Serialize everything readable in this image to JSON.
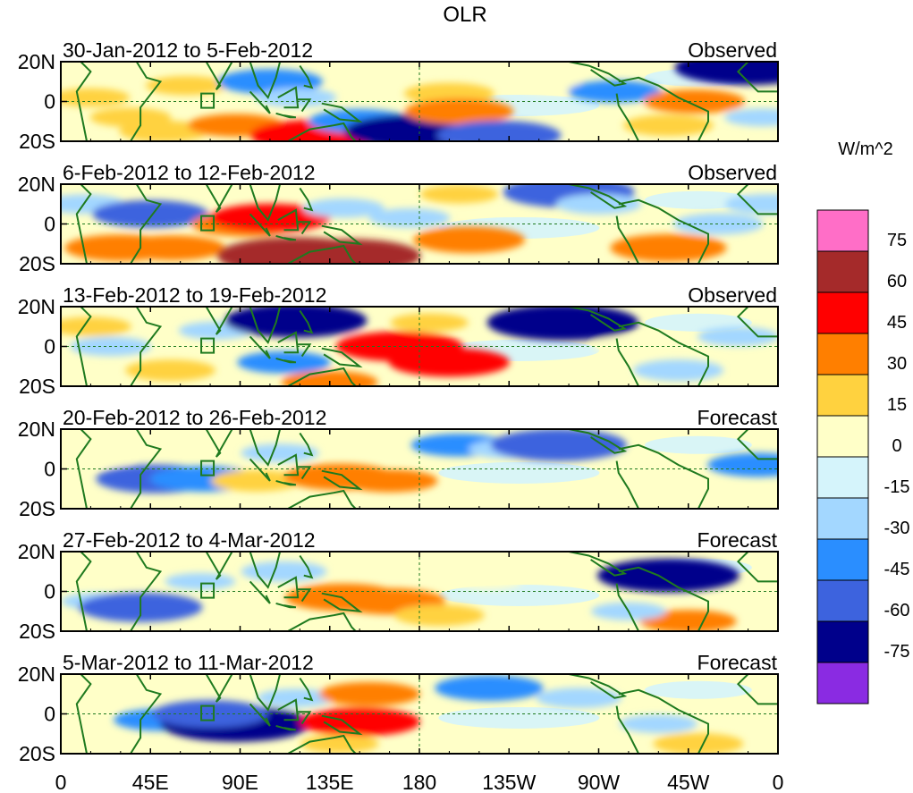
{
  "chart_data": {
    "type": "heatmap",
    "title": "OLR",
    "colorbar": {
      "unit": "W/m^2",
      "labels": [
        "75",
        "60",
        "45",
        "30",
        "15",
        "0",
        "-15",
        "-30",
        "-45",
        "-60",
        "-75"
      ],
      "colors": [
        "#ff6ec7",
        "#a52a2a",
        "#ff0000",
        "#ff7f00",
        "#ffd23f",
        "#ffffc8",
        "#d5f4fb",
        "#a3d7ff",
        "#2a8eff",
        "#3d63de",
        "#00008b",
        "#8a2be2"
      ]
    },
    "x_axis": {
      "ticks": [
        "0",
        "45E",
        "90E",
        "135E",
        "180",
        "135W",
        "90W",
        "45W",
        "0"
      ],
      "range_deg_east": [
        0,
        360
      ]
    },
    "y_axis": {
      "ticks": [
        "20N",
        "0",
        "20S"
      ],
      "range_deg": [
        20,
        -20
      ]
    },
    "panels": [
      {
        "period": "30-Jan-2012 to 5-Feb-2012",
        "kind": "Observed",
        "anomalies": [
          {
            "lon": 15,
            "lat": 2,
            "v": 20
          },
          {
            "lon": 35,
            "lat": -8,
            "v": 22
          },
          {
            "lon": 52,
            "lat": -15,
            "v": 28
          },
          {
            "lon": 63,
            "lat": 8,
            "v": 22
          },
          {
            "lon": 88,
            "lat": -12,
            "v": 32
          },
          {
            "lon": 105,
            "lat": 10,
            "v": -38
          },
          {
            "lon": 118,
            "lat": 2,
            "v": -22
          },
          {
            "lon": 128,
            "lat": -17,
            "v": 55
          },
          {
            "lon": 150,
            "lat": -10,
            "v": -36
          },
          {
            "lon": 178,
            "lat": -15,
            "v": -62
          },
          {
            "lon": 195,
            "lat": 4,
            "v": 28
          },
          {
            "lon": 200,
            "lat": -5,
            "v": 40
          },
          {
            "lon": 220,
            "lat": -17,
            "v": -50
          },
          {
            "lon": 245,
            "lat": 8,
            "v": 12
          },
          {
            "lon": 278,
            "lat": 5,
            "v": -30
          },
          {
            "lon": 305,
            "lat": -12,
            "v": 28
          },
          {
            "lon": 318,
            "lat": 0,
            "v": 35
          },
          {
            "lon": 345,
            "lat": 17,
            "v": -65
          },
          {
            "lon": 352,
            "lat": -8,
            "v": -18
          }
        ]
      },
      {
        "period": "6-Feb-2012 to 12-Feb-2012",
        "kind": "Observed",
        "anomalies": [
          {
            "lon": 12,
            "lat": 10,
            "v": -22
          },
          {
            "lon": 30,
            "lat": -12,
            "v": 42
          },
          {
            "lon": 45,
            "lat": 5,
            "v": -45
          },
          {
            "lon": 56,
            "lat": -12,
            "v": 38
          },
          {
            "lon": 92,
            "lat": 0,
            "v": 38
          },
          {
            "lon": 105,
            "lat": 3,
            "v": 48
          },
          {
            "lon": 118,
            "lat": -16,
            "v": 72
          },
          {
            "lon": 145,
            "lat": -16,
            "v": 62
          },
          {
            "lon": 142,
            "lat": 8,
            "v": -22
          },
          {
            "lon": 175,
            "lat": 3,
            "v": -22
          },
          {
            "lon": 200,
            "lat": 15,
            "v": 20
          },
          {
            "lon": 205,
            "lat": -8,
            "v": 42
          },
          {
            "lon": 255,
            "lat": 16,
            "v": -55
          },
          {
            "lon": 270,
            "lat": 10,
            "v": -25
          },
          {
            "lon": 305,
            "lat": -12,
            "v": 45
          },
          {
            "lon": 330,
            "lat": 0,
            "v": -28
          },
          {
            "lon": 355,
            "lat": 10,
            "v": -25
          }
        ]
      },
      {
        "period": "13-Feb-2012 to 19-Feb-2012",
        "kind": "Observed",
        "anomalies": [
          {
            "lon": 15,
            "lat": 10,
            "v": 22
          },
          {
            "lon": 25,
            "lat": 0,
            "v": -22
          },
          {
            "lon": 55,
            "lat": -12,
            "v": 28
          },
          {
            "lon": 78,
            "lat": 8,
            "v": -18
          },
          {
            "lon": 118,
            "lat": 13,
            "v": -62
          },
          {
            "lon": 112,
            "lat": -8,
            "v": -30
          },
          {
            "lon": 135,
            "lat": -18,
            "v": 32
          },
          {
            "lon": 170,
            "lat": 0,
            "v": 52
          },
          {
            "lon": 195,
            "lat": -8,
            "v": 48
          },
          {
            "lon": 185,
            "lat": 12,
            "v": 20
          },
          {
            "lon": 252,
            "lat": 12,
            "v": -68
          },
          {
            "lon": 285,
            "lat": 0,
            "v": 15
          },
          {
            "lon": 310,
            "lat": -12,
            "v": -28
          },
          {
            "lon": 340,
            "lat": 5,
            "v": -22
          }
        ]
      },
      {
        "period": "20-Feb-2012 to 26-Feb-2012",
        "kind": "Forecast",
        "anomalies": [
          {
            "lon": 20,
            "lat": 5,
            "v": 10
          },
          {
            "lon": 48,
            "lat": -5,
            "v": -48
          },
          {
            "lon": 72,
            "lat": -5,
            "v": -40
          },
          {
            "lon": 98,
            "lat": -6,
            "v": 28
          },
          {
            "lon": 110,
            "lat": 8,
            "v": -20
          },
          {
            "lon": 140,
            "lat": -4,
            "v": 42
          },
          {
            "lon": 165,
            "lat": -6,
            "v": 32
          },
          {
            "lon": 200,
            "lat": 12,
            "v": -32
          },
          {
            "lon": 225,
            "lat": 10,
            "v": -22
          },
          {
            "lon": 250,
            "lat": 12,
            "v": -58
          },
          {
            "lon": 300,
            "lat": -10,
            "v": 15
          },
          {
            "lon": 350,
            "lat": 2,
            "v": -35
          }
        ]
      },
      {
        "period": "27-Feb-2012 to 4-Mar-2012",
        "kind": "Forecast",
        "anomalies": [
          {
            "lon": 18,
            "lat": -5,
            "v": -15
          },
          {
            "lon": 40,
            "lat": -8,
            "v": -50
          },
          {
            "lon": 70,
            "lat": 5,
            "v": -15
          },
          {
            "lon": 112,
            "lat": 10,
            "v": -25
          },
          {
            "lon": 142,
            "lat": -3,
            "v": 45
          },
          {
            "lon": 165,
            "lat": -5,
            "v": 42
          },
          {
            "lon": 190,
            "lat": -12,
            "v": 28
          },
          {
            "lon": 215,
            "lat": 5,
            "v": 12
          },
          {
            "lon": 305,
            "lat": 8,
            "v": -62
          },
          {
            "lon": 315,
            "lat": -15,
            "v": 32
          },
          {
            "lon": 285,
            "lat": -10,
            "v": -18
          }
        ]
      },
      {
        "period": "5-Mar-2012 to 11-Mar-2012",
        "kind": "Forecast",
        "anomalies": [
          {
            "lon": 12,
            "lat": 5,
            "v": 10
          },
          {
            "lon": 50,
            "lat": -3,
            "v": -30
          },
          {
            "lon": 88,
            "lat": -5,
            "v": -68
          },
          {
            "lon": 75,
            "lat": 0,
            "v": -45
          },
          {
            "lon": 118,
            "lat": 8,
            "v": -20
          },
          {
            "lon": 155,
            "lat": 10,
            "v": 35
          },
          {
            "lon": 150,
            "lat": -4,
            "v": 48
          },
          {
            "lon": 140,
            "lat": -15,
            "v": 20
          },
          {
            "lon": 215,
            "lat": 13,
            "v": -40
          },
          {
            "lon": 260,
            "lat": 8,
            "v": -25
          },
          {
            "lon": 300,
            "lat": -5,
            "v": -20
          },
          {
            "lon": 320,
            "lat": -15,
            "v": 28
          }
        ]
      }
    ]
  }
}
